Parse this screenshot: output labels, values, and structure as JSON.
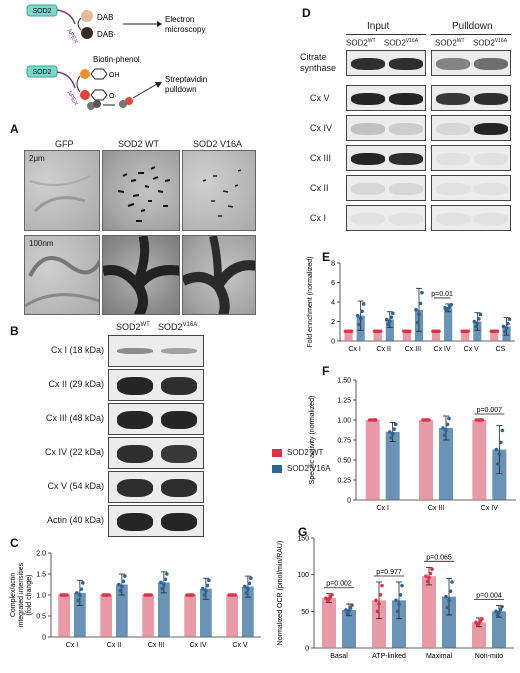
{
  "panel_letters": {
    "a": "A",
    "b": "B",
    "c": "C",
    "d": "D",
    "e": "E",
    "f": "F",
    "g": "G"
  },
  "schema": {
    "sod2": "SOD2",
    "apex": "APEX",
    "dab": "DAB",
    "dab_dot": "DAB·",
    "electron": "Electron",
    "microscopy": "microscopy",
    "biotin_phenol": "Biotin-phenol",
    "oh": "OH",
    "o_dot": "O·",
    "streptavidin": "Streptavidin",
    "pulldown": "pulldown"
  },
  "panel_a": {
    "columns": [
      "GFP",
      "SOD2 WT",
      "SOD2 V16A"
    ],
    "scale_top": "2μm",
    "scale_bottom": "100nm"
  },
  "panel_b": {
    "col_wt": "SOD2",
    "col_wt_sup": "WT",
    "col_v": "SOD2",
    "col_v_sup": "V16A",
    "rows": [
      "Cx I (18 kDa)",
      "Cx II (29 kDa)",
      "Cx III (48 kDa)",
      "Cx IV (22 kDa)",
      "Cx V (54 kDa)",
      "Actin (40 kDa)"
    ],
    "legend": [
      {
        "label": "SOD2 WT",
        "color": "#e07a8a"
      },
      {
        "label": "SOD2 V16A",
        "color": "#3a6f9e"
      }
    ]
  },
  "panel_d": {
    "input": "Input",
    "pulldown": "Pulldown",
    "col_wt": "SOD2",
    "col_wt_sup": "WT",
    "col_v": "SOD2",
    "col_v_sup": "V16A",
    "rows": [
      "Citrate synthase",
      "Cx V",
      "Cx IV",
      "Cx III",
      "Cx II",
      "Cx I"
    ],
    "citrate_line1": "Citrate",
    "citrate_line2": "synthase"
  },
  "chart_data": [
    {
      "id": "C",
      "type": "bar",
      "ylabel_line1": "Complex/actin",
      "ylabel_line2": "integrated intensities",
      "ylabel_line3": "(fold change)",
      "categories": [
        "Cx I",
        "Cx II",
        "Cx III",
        "Cx IV",
        "Cx V"
      ],
      "ylim": [
        0,
        2
      ],
      "yticks": [
        0,
        0.5,
        1.0,
        1.5,
        2.0
      ],
      "ytick_labels": [
        "0",
        "0.5",
        "1.0",
        "1.5",
        "2.0"
      ],
      "series": [
        {
          "name": "SOD2 WT",
          "values": [
            1,
            1,
            1,
            1,
            1
          ],
          "err": [
            0,
            0,
            0,
            0,
            0
          ],
          "color": "#e07a8a"
        },
        {
          "name": "SOD2 V16A",
          "values": [
            1.05,
            1.25,
            1.3,
            1.15,
            1.2
          ],
          "err": [
            0.3,
            0.25,
            0.25,
            0.25,
            0.25
          ],
          "color": "#3a6f9e"
        }
      ]
    },
    {
      "id": "E",
      "type": "bar",
      "ylabel": "Fold enrichment (normalized)",
      "categories": [
        "Cx I",
        "Cx II",
        "Cx III",
        "Cx IV",
        "Cx V",
        "CS"
      ],
      "ylim": [
        0,
        8
      ],
      "yticks": [
        0,
        2,
        4,
        6,
        8
      ],
      "ytick_labels": [
        "0",
        "2",
        "4",
        "6",
        "8"
      ],
      "series": [
        {
          "name": "SOD2 WT",
          "values": [
            1,
            1,
            1,
            1,
            1,
            1
          ],
          "err": [
            0,
            0,
            0,
            0,
            0,
            0
          ],
          "color": "#e07a8a"
        },
        {
          "name": "SOD2 V16A",
          "values": [
            2.6,
            2.2,
            3.2,
            3.4,
            2.0,
            1.5
          ],
          "err": [
            1.5,
            0.8,
            2.2,
            0.4,
            0.9,
            0.9
          ],
          "color": "#3a6f9e"
        }
      ],
      "annotations": [
        {
          "text": "p=0.01",
          "category": 3
        }
      ]
    },
    {
      "id": "F",
      "type": "bar",
      "ylabel": "Specific activity (normalized)",
      "categories": [
        "Cx I",
        "Cx III",
        "Cx IV"
      ],
      "ylim": [
        0,
        1.5
      ],
      "yticks": [
        0,
        0.25,
        0.5,
        0.75,
        1.0,
        1.25,
        1.5
      ],
      "ytick_labels": [
        "0",
        "0.25",
        "0.50",
        "0.75",
        "1.00",
        "1.25",
        "1.50"
      ],
      "series": [
        {
          "name": "SOD2 WT",
          "values": [
            1,
            1,
            1
          ],
          "err": [
            0,
            0,
            0
          ],
          "color": "#e07a8a"
        },
        {
          "name": "SOD2 V16A",
          "values": [
            0.85,
            0.9,
            0.63
          ],
          "err": [
            0.12,
            0.15,
            0.3
          ],
          "color": "#3a6f9e"
        }
      ],
      "annotations": [
        {
          "text": "p=0.007",
          "category": 2
        }
      ]
    },
    {
      "id": "G",
      "type": "bar",
      "ylabel_line1": "Normalized OCR (pmol/min/RAU)",
      "categories": [
        "Basal",
        "ATP-linked",
        "Maximal",
        "Non-mito"
      ],
      "ylim": [
        0,
        150
      ],
      "yticks": [
        0,
        50,
        100,
        150
      ],
      "ytick_labels": [
        "0",
        "50",
        "100",
        "150"
      ],
      "series": [
        {
          "name": "SOD2 WT",
          "values": [
            68,
            65,
            98,
            35
          ],
          "err": [
            6,
            25,
            12,
            6
          ],
          "color": "#e07a8a"
        },
        {
          "name": "SOD2 V16A",
          "values": [
            52,
            65,
            70,
            50
          ],
          "err": [
            8,
            25,
            25,
            8
          ],
          "color": "#3a6f9e"
        }
      ],
      "annotations": [
        {
          "text": "p=0.002",
          "category": 0
        },
        {
          "text": "p=0.977",
          "category": 1
        },
        {
          "text": "p=0.065",
          "category": 2
        },
        {
          "text": "p=0.004",
          "category": 3
        }
      ]
    }
  ]
}
